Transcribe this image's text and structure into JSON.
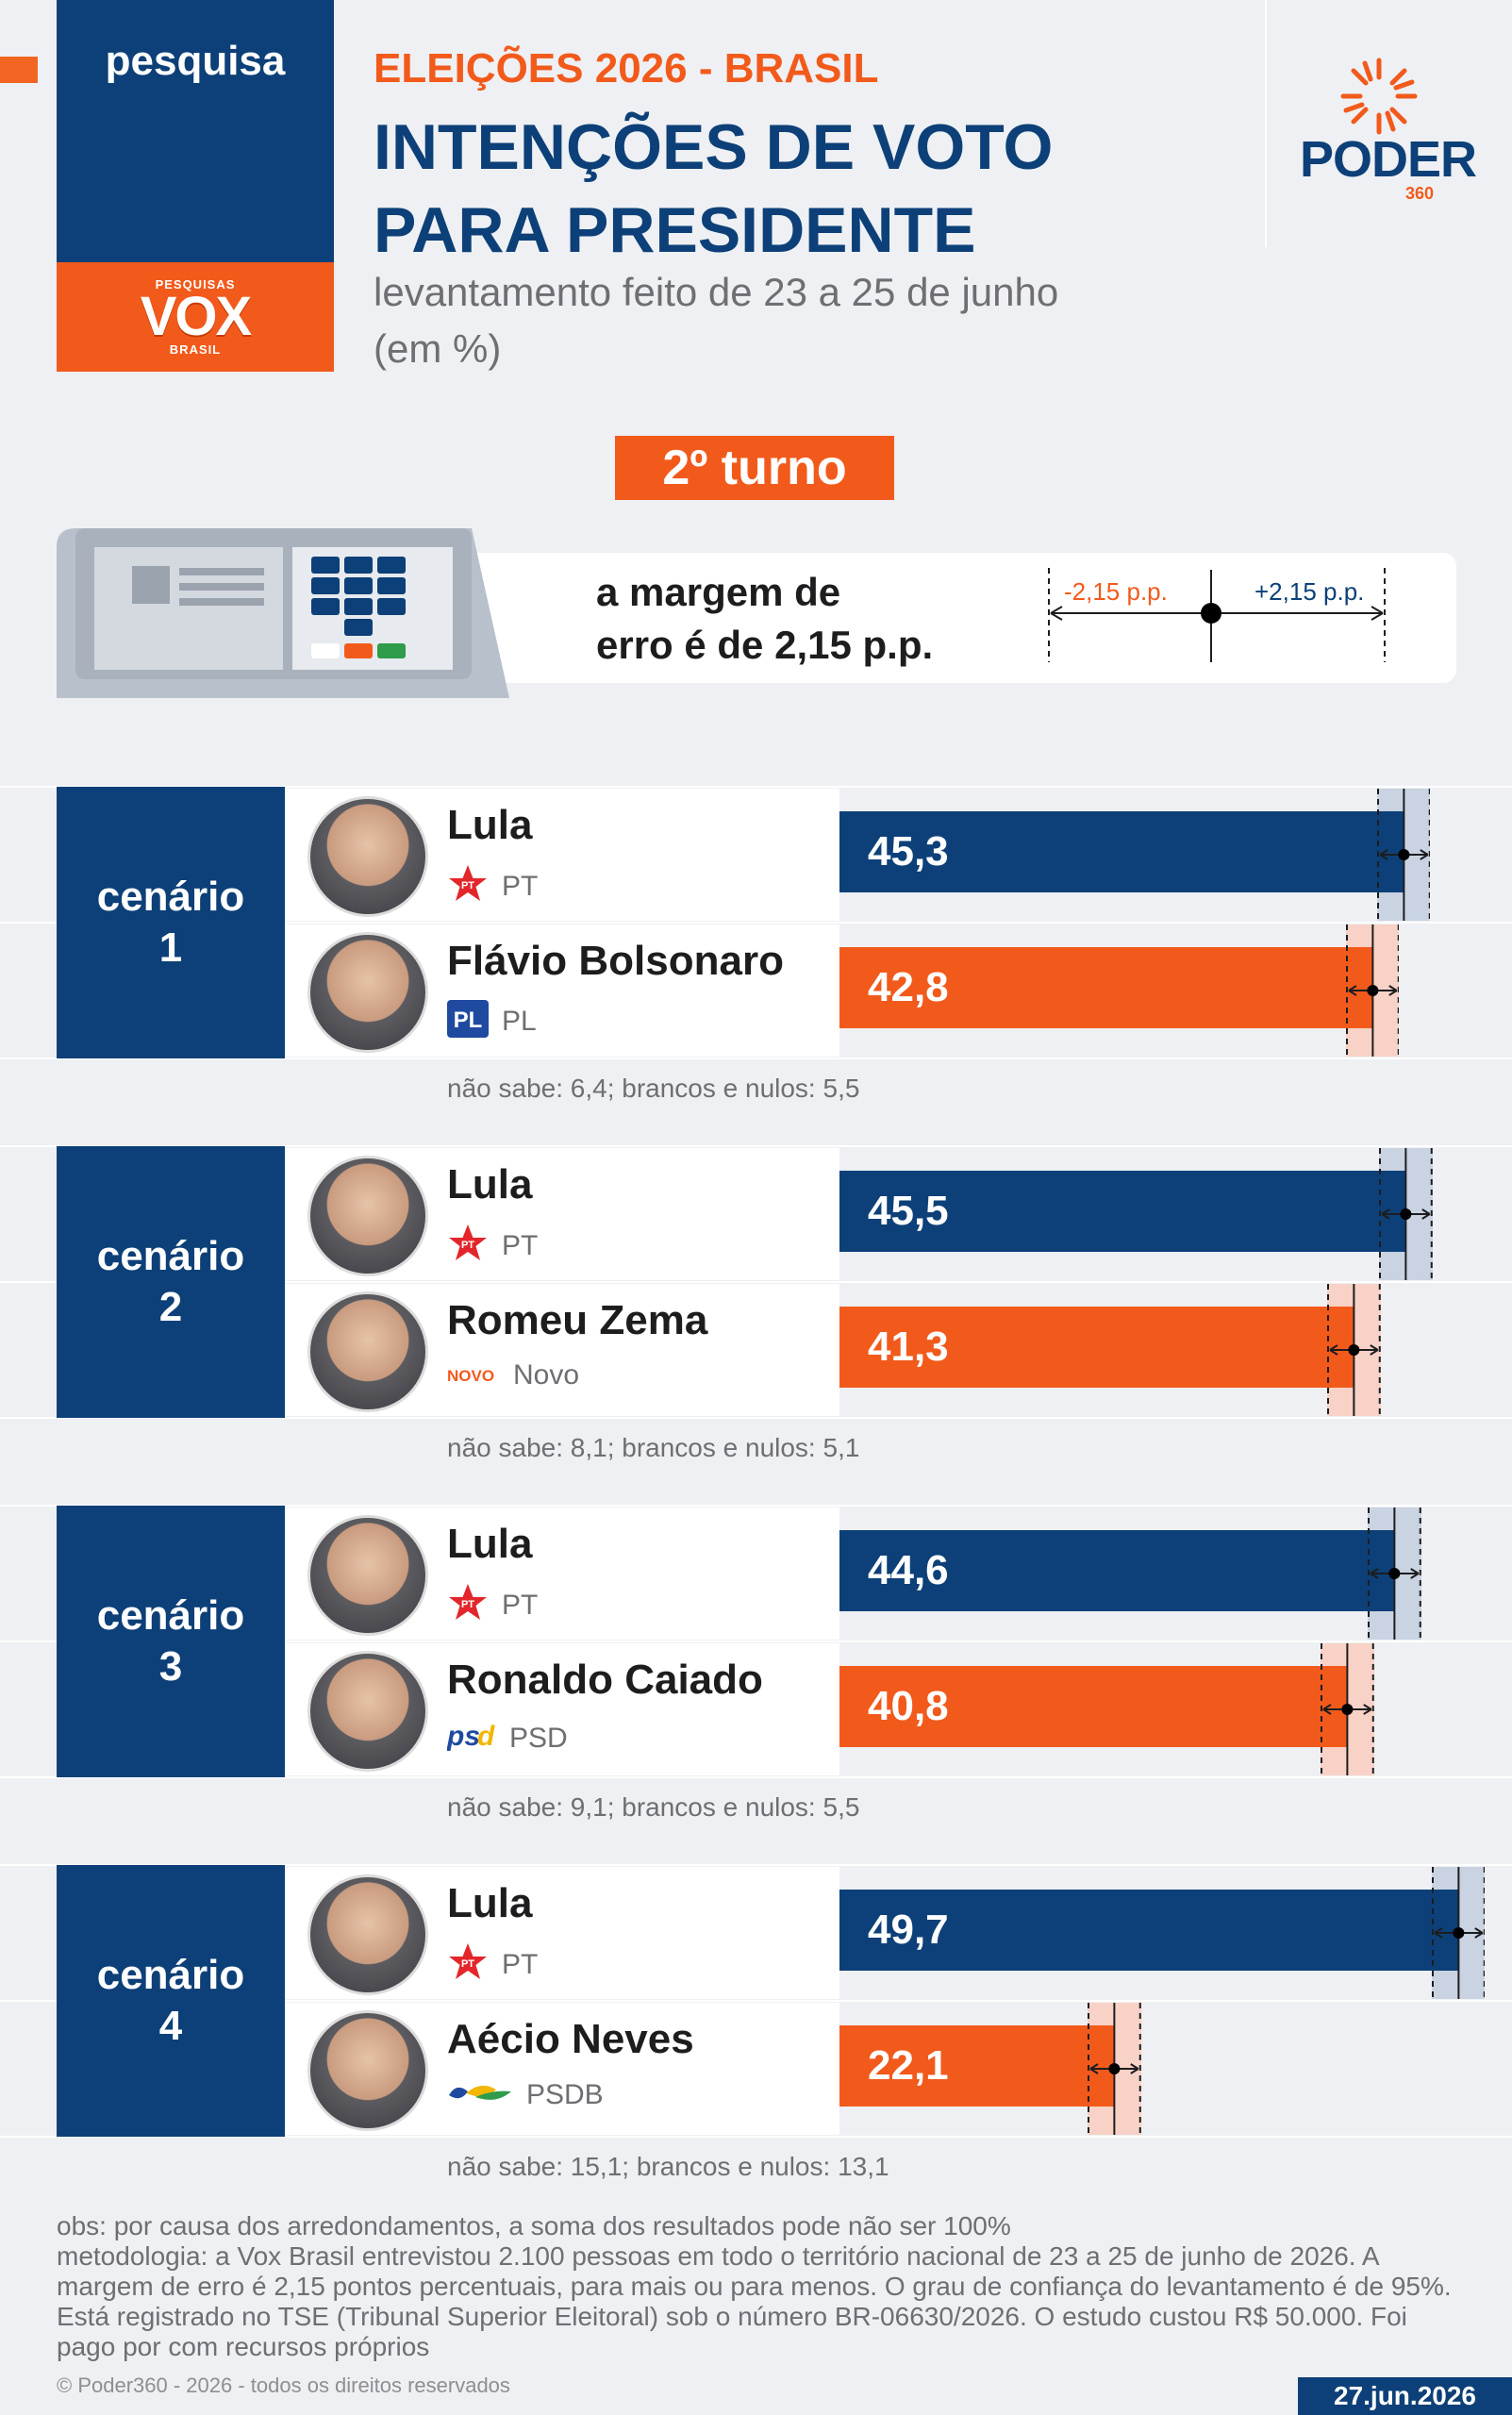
{
  "header": {
    "tag": "pesquisa",
    "pollster_small_top": "PESQUISAS",
    "pollster_big": "VOX",
    "pollster_small_bottom": "BRASIL",
    "kicker": "ELEIÇÕES 2026 - BRASIL",
    "title_line1": "INTENÇÕES DE VOTO",
    "title_line2": "PARA PRESIDENTE",
    "subtitle_line1": "levantamento feito de 23 a 25 de junho",
    "subtitle_line2": "(em %)",
    "brand": "PODER",
    "brand_number": "360"
  },
  "round_label": "2º turno",
  "margin": {
    "text_line1": "a margem de",
    "text_line2": "erro é de 2,15 p.p.",
    "minus_label": "-2,15 p.p.",
    "plus_label": "+2,15 p.p."
  },
  "colors": {
    "blue": "#0d4078",
    "orange": "#f25a1c",
    "blue_margin": "#c9d3e1",
    "orange_margin": "#f8d2c6"
  },
  "chart_data": {
    "type": "bar",
    "margin_of_error": 2.15,
    "scenarios": [
      {
        "label_line1": "cenário",
        "label_line2": "1",
        "candidates": [
          {
            "name": "Lula",
            "party": "PT",
            "party_logo": "PT",
            "value": 45.3,
            "value_label": "45,3",
            "color": "blue"
          },
          {
            "name": "Flávio Bolsonaro",
            "party": "PL",
            "party_logo": "PL",
            "value": 42.8,
            "value_label": "42,8",
            "color": "orange"
          }
        ],
        "note": "não sabe: 6,4; brancos e nulos: 5,5"
      },
      {
        "label_line1": "cenário",
        "label_line2": "2",
        "candidates": [
          {
            "name": "Lula",
            "party": "PT",
            "party_logo": "PT",
            "value": 45.5,
            "value_label": "45,5",
            "color": "blue"
          },
          {
            "name": "Romeu Zema",
            "party": "Novo",
            "party_logo": "NOVO",
            "value": 41.3,
            "value_label": "41,3",
            "color": "orange"
          }
        ],
        "note": "não sabe: 8,1; brancos e nulos: 5,1"
      },
      {
        "label_line1": "cenário",
        "label_line2": "3",
        "candidates": [
          {
            "name": "Lula",
            "party": "PT",
            "party_logo": "PT",
            "value": 44.6,
            "value_label": "44,6",
            "color": "blue"
          },
          {
            "name": "Ronaldo Caiado",
            "party": "PSD",
            "party_logo": "psd",
            "value": 40.8,
            "value_label": "40,8",
            "color": "orange"
          }
        ],
        "note": "não sabe: 9,1; brancos e nulos: 5,5"
      },
      {
        "label_line1": "cenário",
        "label_line2": "4",
        "candidates": [
          {
            "name": "Lula",
            "party": "PT",
            "party_logo": "PT",
            "value": 49.7,
            "value_label": "49,7",
            "color": "blue"
          },
          {
            "name": "Aécio Neves",
            "party": "PSDB",
            "party_logo": "",
            "value": 22.1,
            "value_label": "22,1",
            "color": "orange"
          }
        ],
        "note": "não sabe: 15,1; brancos e nulos: 13,1"
      }
    ]
  },
  "footer": {
    "obs": "obs: por causa dos arredondamentos, a soma dos resultados pode não ser 100%",
    "methodology": "metodologia: a Vox Brasil entrevistou 2.100 pessoas em todo o território nacional de 23 a 25 de junho de 2026. A margem de erro é 2,15 pontos percentuais, para mais ou para menos. O grau de confiança do levantamento é de 95%. Está registrado no TSE (Tribunal Superior Eleitoral) sob o número BR-06630/2026. O estudo custou R$ 50.000. Foi pago por com recursos próprios",
    "copyright": "© Poder360 - 2026 - todos os direitos reservados",
    "date": "27.jun.2026"
  }
}
